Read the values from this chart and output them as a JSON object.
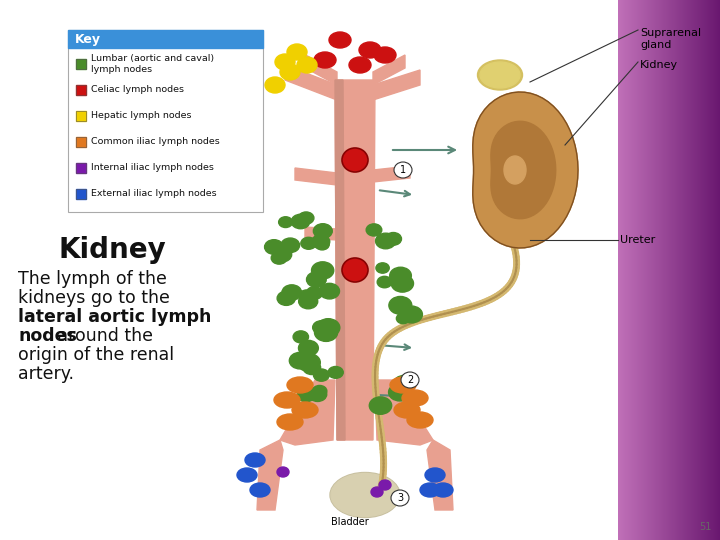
{
  "title": "Kidney",
  "title_fontsize": 20,
  "body_fontsize": 12.5,
  "bg_left_color": "#ffffff",
  "key_bg": "#3a90d9",
  "key_title_color": "#ffffff",
  "key_items": [
    {
      "color": "#4a8c2a",
      "label": "Lumbar (aortic and caval)\nlymph nodes"
    },
    {
      "color": "#cc1111",
      "label": "Celiac lymph nodes"
    },
    {
      "color": "#f0d000",
      "label": "Hepatic lymph nodes"
    },
    {
      "color": "#e07820",
      "label": "Common iliac lymph nodes"
    },
    {
      "color": "#7a1aaa",
      "label": "Internal iliac lymph nodes"
    },
    {
      "color": "#2255cc",
      "label": "External iliac lymph nodes"
    }
  ],
  "purple_left": "#c070b8",
  "purple_right": "#6a1870",
  "aorta_color": "#e8a090",
  "aorta_dark": "#c07060",
  "kidney_color": "#c8904a",
  "kidney_dark": "#a07030",
  "ureter_color": "#d4b870",
  "bladder_color": "#d0c090",
  "suprarenal_color": "#d4c060"
}
